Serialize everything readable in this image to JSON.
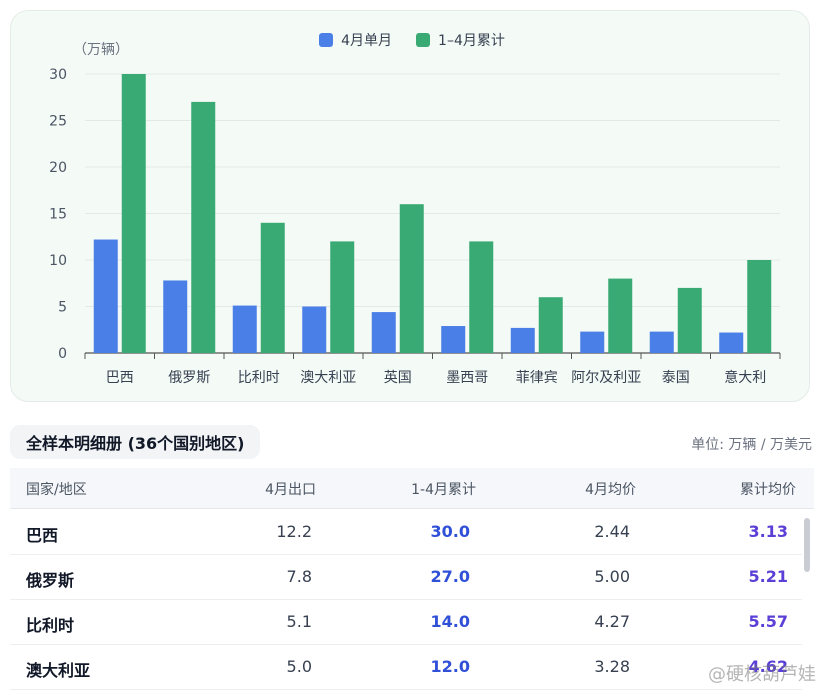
{
  "chart_data": {
    "type": "bar",
    "y_unit": "（万辆）",
    "categories": [
      "巴西",
      "俄罗斯",
      "比利时",
      "澳大利亚",
      "英国",
      "墨西哥",
      "菲律宾",
      "阿尔及利亚",
      "泰国",
      "意大利"
    ],
    "series": [
      {
        "name": "4月单月",
        "color": "#4a7fe8",
        "values": [
          12.2,
          7.8,
          5.1,
          5.0,
          4.4,
          2.9,
          2.7,
          2.3,
          2.3,
          2.2
        ]
      },
      {
        "name": "1–4月累计",
        "color": "#3aaa74",
        "values": [
          30,
          27,
          14,
          12,
          16,
          12,
          6,
          8,
          7,
          10
        ]
      }
    ],
    "yticks": [
      0,
      5,
      10,
      15,
      20,
      25,
      30
    ],
    "ylim": [
      0,
      30
    ],
    "grid": true,
    "legend": "top-center"
  },
  "table": {
    "title": "全样本明细册 (36个国别地区)",
    "units": "单位: 万辆 / 万美元",
    "headers": [
      "国家/地区",
      "4月出口",
      "1-4月累计",
      "4月均价",
      "累计均价"
    ],
    "rows": [
      [
        "巴西",
        "12.2",
        "30.0",
        "2.44",
        "3.13"
      ],
      [
        "俄罗斯",
        "7.8",
        "27.0",
        "5.00",
        "5.21"
      ],
      [
        "比利时",
        "5.1",
        "14.0",
        "4.27",
        "5.57"
      ],
      [
        "澳大利亚",
        "5.0",
        "12.0",
        "3.28",
        "4.62"
      ]
    ]
  },
  "watermark": "@硬核葫芦娃"
}
